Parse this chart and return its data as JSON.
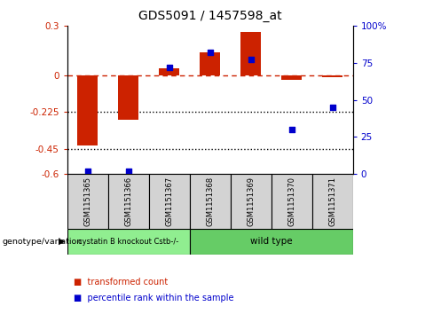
{
  "title": "GDS5091 / 1457598_at",
  "samples": [
    "GSM1151365",
    "GSM1151366",
    "GSM1151367",
    "GSM1151368",
    "GSM1151369",
    "GSM1151370",
    "GSM1151371"
  ],
  "red_values": [
    -0.43,
    -0.27,
    0.04,
    0.14,
    0.26,
    -0.03,
    -0.01
  ],
  "blue_values": [
    2,
    2,
    72,
    82,
    77,
    30,
    45
  ],
  "ylim_left": [
    -0.6,
    0.3
  ],
  "ylim_right": [
    0,
    100
  ],
  "yticks_left": [
    -0.6,
    -0.45,
    -0.225,
    0.0,
    0.3
  ],
  "yticks_right": [
    0,
    25,
    50,
    75,
    100
  ],
  "ytick_labels_left": [
    "-0.6",
    "-0.45",
    "-0.225",
    "0",
    "0.3"
  ],
  "ytick_labels_right": [
    "0",
    "25",
    "50",
    "75",
    "100%"
  ],
  "hlines": [
    -0.225,
    -0.45
  ],
  "group1_samples": [
    0,
    1,
    2
  ],
  "group1_label": "cystatin B knockout Cstb-/-",
  "group1_color": "#90EE90",
  "group2_samples": [
    3,
    4,
    5,
    6
  ],
  "group2_label": "wild type",
  "group2_color": "#66CC66",
  "bar_color": "#CC2200",
  "dot_color": "#0000CC",
  "bar_width": 0.5,
  "dot_size": 25,
  "left_label_color": "#CC2200",
  "right_label_color": "#0000CC",
  "legend_red_label": "transformed count",
  "legend_blue_label": "percentile rank within the sample",
  "genotype_label": "genotype/variation",
  "dashed_line_color": "#CC2200",
  "dotted_line_color": "#000000",
  "sample_box_color": "#D3D3D3",
  "figwidth": 4.88,
  "figheight": 3.63,
  "dpi": 100
}
